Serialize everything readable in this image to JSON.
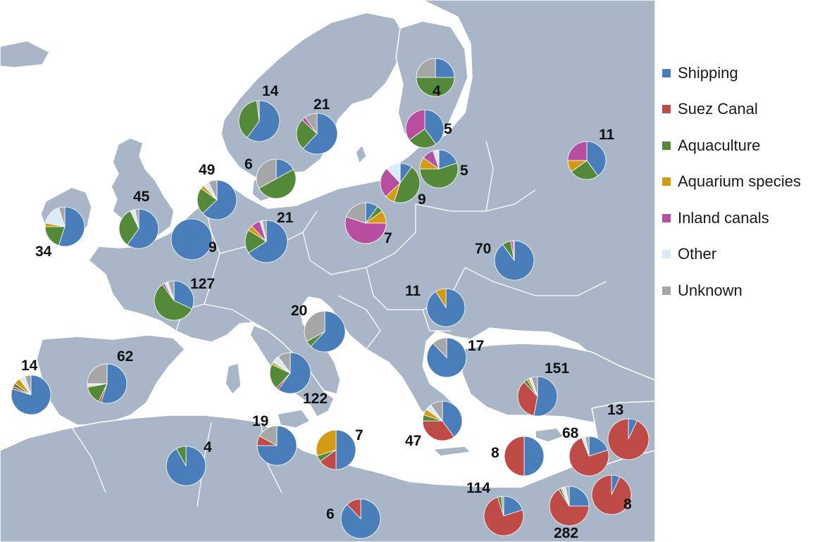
{
  "legend": [
    {
      "key": "shipping",
      "label": "Shipping",
      "color": "#4a7ebb"
    },
    {
      "key": "suez",
      "label": "Suez Canal",
      "color": "#be4b48"
    },
    {
      "key": "aquaculture",
      "label": "Aquaculture",
      "color": "#55893a"
    },
    {
      "key": "aquarium",
      "label": "Aquarium species",
      "color": "#d39a12"
    },
    {
      "key": "inland",
      "label": "Inland canals",
      "color": "#b84ea0"
    },
    {
      "key": "other",
      "label": "Other",
      "color": "#dce9f6"
    },
    {
      "key": "unknown",
      "label": "Unknown",
      "color": "#a6a6a6"
    }
  ],
  "colors": {
    "sea": "#ffffff",
    "land": "#a9b6c8",
    "border": "#ffffff"
  },
  "chart_data": {
    "type": "pie",
    "categories": [
      "Shipping",
      "Suez Canal",
      "Aquaculture",
      "Aquarium species",
      "Inland canals",
      "Other",
      "Unknown"
    ],
    "pies": [
      {
        "label": "14",
        "region": "Norway",
        "values": [
          0.6,
          0,
          0.38,
          0,
          0,
          0,
          0.02
        ]
      },
      {
        "label": "21",
        "region": "Sweden (west)",
        "values": [
          0.62,
          0,
          0.25,
          0,
          0.03,
          0,
          0.1
        ]
      },
      {
        "label": "4",
        "region": "Finland",
        "values": [
          0.25,
          0,
          0.5,
          0,
          0,
          0,
          0.25
        ]
      },
      {
        "label": "5",
        "region": "Gulf of Finland",
        "values": [
          0.4,
          0,
          0.25,
          0,
          0.35,
          0,
          0
        ]
      },
      {
        "label": "11",
        "region": "Russia",
        "values": [
          0.4,
          0,
          0.25,
          0.1,
          0.25,
          0,
          0
        ]
      },
      {
        "label": "5",
        "region": "Estonia",
        "values": [
          0.2,
          0,
          0.55,
          0.1,
          0.1,
          0.05,
          0
        ]
      },
      {
        "label": "9",
        "region": "Baltic (east)",
        "values": [
          0.1,
          0,
          0.45,
          0.08,
          0.25,
          0.12,
          0
        ]
      },
      {
        "label": "6",
        "region": "Denmark",
        "values": [
          0.17,
          0,
          0.5,
          0,
          0,
          0,
          0.33
        ]
      },
      {
        "label": "49",
        "region": "North Sea",
        "values": [
          0.63,
          0,
          0.22,
          0.03,
          0,
          0.05,
          0.07
        ]
      },
      {
        "label": "45",
        "region": "Great Britain",
        "values": [
          0.6,
          0,
          0.33,
          0,
          0,
          0.04,
          0.03
        ]
      },
      {
        "label": "34",
        "region": "Ireland",
        "values": [
          0.55,
          0,
          0.2,
          0.03,
          0,
          0.17,
          0.05
        ]
      },
      {
        "label": "9",
        "region": "Belgium",
        "values": [
          1,
          0,
          0,
          0,
          0,
          0,
          0
        ]
      },
      {
        "label": "21",
        "region": "Germany",
        "values": [
          0.66,
          0,
          0.18,
          0.04,
          0.07,
          0.02,
          0.03
        ]
      },
      {
        "label": "7",
        "region": "Poland",
        "values": [
          0.1,
          0,
          0.05,
          0.1,
          0.55,
          0,
          0.2
        ]
      },
      {
        "label": "70",
        "region": "Ukraine",
        "values": [
          0.9,
          0,
          0.07,
          0,
          0.02,
          0,
          0.01
        ]
      },
      {
        "label": "127",
        "region": "France",
        "values": [
          0.32,
          0,
          0.58,
          0,
          0.02,
          0.03,
          0.05
        ]
      },
      {
        "label": "20",
        "region": "Adriatic",
        "values": [
          0.62,
          0,
          0.05,
          0,
          0,
          0,
          0.33
        ]
      },
      {
        "label": "11",
        "region": "Romania",
        "values": [
          0.91,
          0,
          0,
          0.09,
          0,
          0,
          0
        ]
      },
      {
        "label": "17",
        "region": "Black Sea (west)",
        "values": [
          0.88,
          0,
          0,
          0,
          0,
          0,
          0.12
        ]
      },
      {
        "label": "14",
        "region": "Portugal",
        "values": [
          0.8,
          0.02,
          0.03,
          0.05,
          0,
          0.05,
          0.05
        ]
      },
      {
        "label": "62",
        "region": "Spain",
        "values": [
          0.55,
          0.02,
          0.15,
          0.01,
          0,
          0.02,
          0.25
        ]
      },
      {
        "label": "122",
        "region": "Italy",
        "values": [
          0.6,
          0.02,
          0.2,
          0.02,
          0,
          0.06,
          0.1
        ]
      },
      {
        "label": "151",
        "region": "Turkey",
        "values": [
          0.53,
          0.35,
          0.03,
          0.02,
          0,
          0.02,
          0.05
        ]
      },
      {
        "label": "4",
        "region": "Algeria",
        "values": [
          0.92,
          0,
          0.08,
          0,
          0,
          0,
          0
        ]
      },
      {
        "label": "19",
        "region": "Tunisia",
        "values": [
          0.75,
          0.08,
          0,
          0,
          0,
          0,
          0.17
        ]
      },
      {
        "label": "7",
        "region": "Malta",
        "values": [
          0.5,
          0.15,
          0.05,
          0.3,
          0,
          0,
          0
        ]
      },
      {
        "label": "47",
        "region": "Greece",
        "values": [
          0.4,
          0.35,
          0.05,
          0.05,
          0,
          0.05,
          0.1
        ]
      },
      {
        "label": "8",
        "region": "Cyprus",
        "values": [
          0.5,
          0.5,
          0,
          0,
          0,
          0,
          0
        ]
      },
      {
        "label": "13",
        "region": "Syria",
        "values": [
          0.07,
          0.93,
          0,
          0,
          0,
          0,
          0
        ]
      },
      {
        "label": "68",
        "region": "Lebanon",
        "values": [
          0.2,
          0.74,
          0,
          0,
          0,
          0.03,
          0.03
        ]
      },
      {
        "label": "8",
        "region": "Israel",
        "values": [
          0.07,
          0.93,
          0,
          0,
          0,
          0,
          0
        ]
      },
      {
        "label": "6",
        "region": "Libya",
        "values": [
          0.88,
          0.12,
          0,
          0,
          0,
          0,
          0
        ]
      },
      {
        "label": "114",
        "region": "Egypt",
        "values": [
          0.2,
          0.75,
          0.03,
          0,
          0,
          0,
          0.02
        ]
      },
      {
        "label": "282",
        "region": "Levant coast",
        "values": [
          0.25,
          0.66,
          0.02,
          0.01,
          0,
          0.03,
          0.03
        ]
      }
    ]
  }
}
